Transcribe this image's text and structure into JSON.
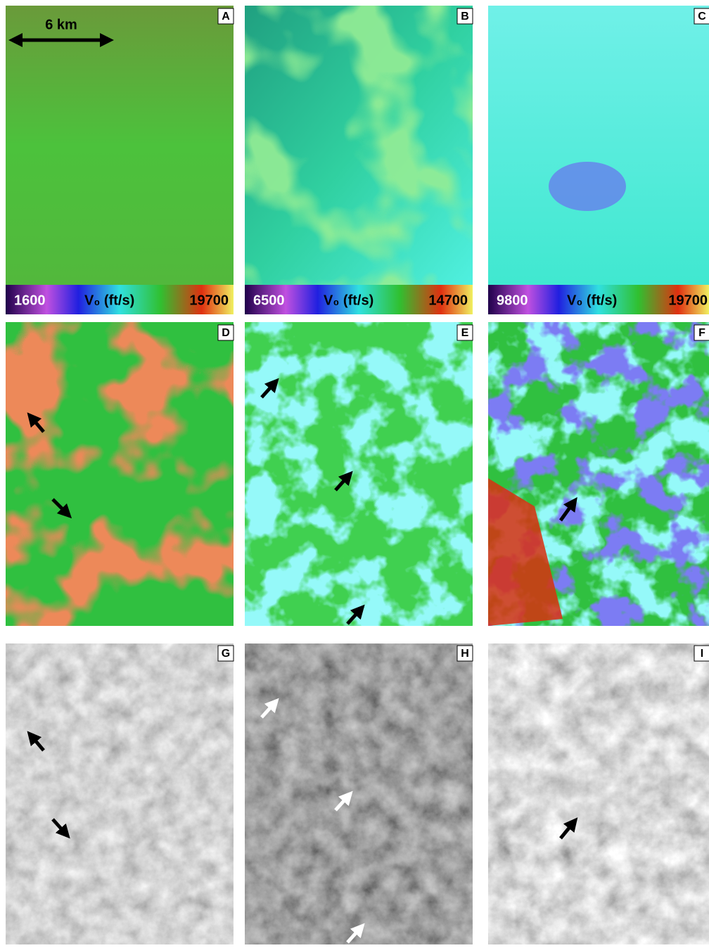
{
  "scale_bar": "6 km",
  "panels": [
    {
      "label": "A",
      "colorbar": {
        "min": 1600,
        "title": "V₀ (ft/s)",
        "max": 19700
      }
    },
    {
      "label": "B",
      "colorbar": {
        "min": 6500,
        "title": "V₀ (ft/s)",
        "max": 14700
      }
    },
    {
      "label": "C",
      "colorbar": {
        "min": 9800,
        "title": "V₀ (ft/s)",
        "max": 19700
      }
    },
    {
      "label": "D"
    },
    {
      "label": "E"
    },
    {
      "label": "F"
    },
    {
      "label": "G"
    },
    {
      "label": "H"
    },
    {
      "label": "I"
    }
  ]
}
